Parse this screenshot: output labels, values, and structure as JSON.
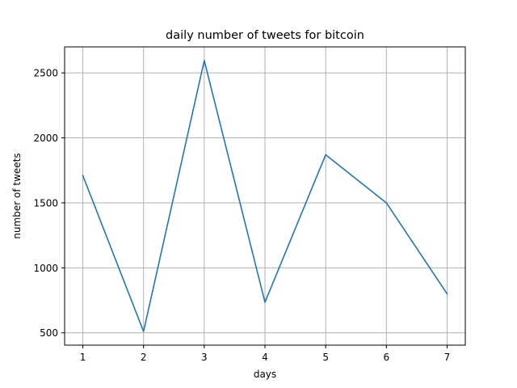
{
  "chart_data": {
    "type": "line",
    "title": "daily number of tweets for bitcoin",
    "xlabel": "days",
    "ylabel": "number of tweets",
    "x": [
      1,
      2,
      3,
      4,
      5,
      6,
      7
    ],
    "series": [
      {
        "values": [
          1710,
          510,
          2595,
          735,
          1870,
          1500,
          800
        ]
      }
    ],
    "xlim": [
      0.7,
      7.3
    ],
    "ylim": [
      405,
      2700
    ],
    "xticks": [
      1,
      2,
      3,
      4,
      5,
      6,
      7
    ],
    "yticks": [
      500,
      1000,
      1500,
      2000,
      2500
    ],
    "xtick_labels": [
      "1",
      "2",
      "3",
      "4",
      "5",
      "6",
      "7"
    ],
    "ytick_labels": [
      "500",
      "1000",
      "1500",
      "2000",
      "2500"
    ],
    "grid": true,
    "colors": {
      "line": "#1f77b4",
      "grid": "#b0b0b0",
      "axes": "#000000"
    }
  }
}
